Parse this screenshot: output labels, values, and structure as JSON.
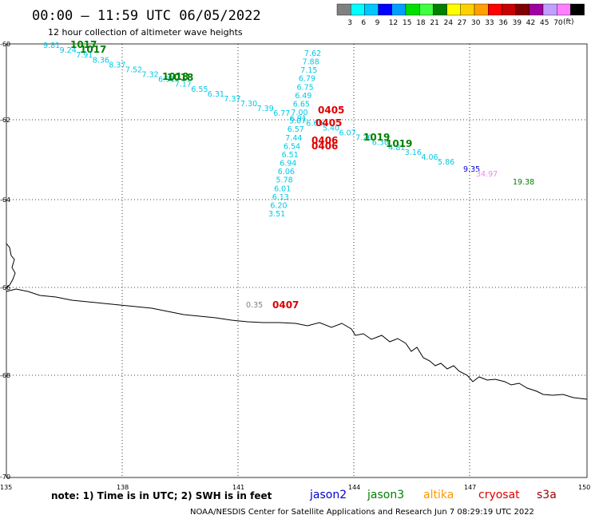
{
  "header": {
    "title": "00:00 – 11:59 UTC 06/05/2022",
    "subtitle": "12 hour collection of altimeter wave heights"
  },
  "colorbar": {
    "unit": "(ft)",
    "colors": [
      "#808080",
      "#00ffff",
      "#00c8ff",
      "#0000ff",
      "#00a0ff",
      "#00e000",
      "#40ff40",
      "#008000",
      "#ffff00",
      "#ffd000",
      "#ffa000",
      "#ff0000",
      "#c80000",
      "#800000",
      "#a000a0",
      "#c0a0ff",
      "#ff80ff",
      "#000000"
    ],
    "labels": [
      "3",
      "6",
      "9",
      "12",
      "15",
      "18",
      "21",
      "24",
      "27",
      "30",
      "33",
      "36",
      "39",
      "42",
      "45",
      "70"
    ]
  },
  "axes": {
    "lon_labels": [
      "135",
      "138",
      "141",
      "144",
      "147",
      "150"
    ],
    "lat_labels": [
      "-60",
      "-62",
      "-64",
      "-66",
      "-68",
      "-70"
    ]
  },
  "tracks": {
    "swh_color": "#00c8e6",
    "track1": [
      "9.81",
      "9.24",
      "7.91",
      "8.36",
      "8.37",
      "7.52",
      "7.32",
      "6.91",
      "7.17",
      "6.55",
      "6.31",
      "7.37",
      "7.30",
      "7.39",
      "6.77",
      "6.91",
      "6.69",
      "5.40",
      "6.07",
      "7.20",
      "6.36",
      "4.81",
      "3.16",
      "4.06",
      "5.86"
    ],
    "track2": [
      "7.62",
      "7.88",
      "7.15",
      "6.79",
      "6.75",
      "6.49",
      "6.65",
      "7.00",
      "5.07",
      "6.57",
      "7.44",
      "6.54",
      "6.51",
      "6.94",
      "6.06",
      "5.78",
      "6.01",
      "6.13",
      "6.20",
      "3.51"
    ],
    "extra": [
      {
        "value": "9.35",
        "color": "#0000cc"
      },
      {
        "value": "34.97",
        "color": "#ee88ee"
      },
      {
        "value": "19.38",
        "color": "#008000"
      },
      {
        "value": "0.35",
        "color": "#808080"
      }
    ],
    "times": [
      {
        "value": "1017",
        "color": "#008000"
      },
      {
        "value": "1017",
        "color": "#008000"
      },
      {
        "value": "1018",
        "color": "#008000"
      },
      {
        "value": "1018",
        "color": "#008000"
      },
      {
        "value": "1019",
        "color": "#008000"
      },
      {
        "value": "1019",
        "color": "#008000"
      },
      {
        "value": "0405",
        "color": "#e00000"
      },
      {
        "value": "0405",
        "color": "#e00000"
      },
      {
        "value": "0406",
        "color": "#e00000"
      },
      {
        "value": "0406",
        "color": "#e00000"
      },
      {
        "value": "0407",
        "color": "#e00000"
      }
    ]
  },
  "footer": {
    "note": "note:  1) Time is in UTC;  2) SWH is in feet",
    "satellites": [
      {
        "name": "jason2",
        "color": "#0000cc"
      },
      {
        "name": "jason3",
        "color": "#008000"
      },
      {
        "name": "altika",
        "color": "#ff9900"
      },
      {
        "name": "cryosat",
        "color": "#e00000"
      },
      {
        "name": "s3a",
        "color": "#a00000"
      }
    ],
    "credit": "NOAA/NESDIS Center for Satellite Applications and Research     Jun  7 08:29:19 UTC 2022"
  }
}
